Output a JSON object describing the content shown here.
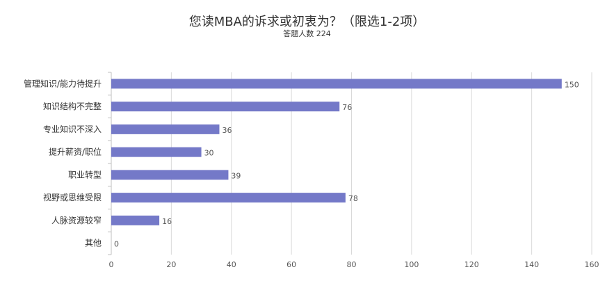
{
  "chart_data": {
    "type": "bar",
    "orientation": "horizontal",
    "title": "您读MBA的诉求或初衷为？（限选1-2项）",
    "subtitle": "答题人数 224",
    "categories": [
      "管理知识/能力待提升",
      "知识结构不完整",
      "专业知识不深入",
      "提升薪资/职位",
      "职业转型",
      "视野或思维受限",
      "人脉资源较窄",
      "其他"
    ],
    "values": [
      150,
      76,
      36,
      30,
      39,
      78,
      16,
      0
    ],
    "xlim": [
      0,
      160
    ],
    "xticks": [
      0,
      20,
      40,
      60,
      80,
      100,
      120,
      140,
      160
    ],
    "grid": true,
    "bar_color": "#7479c8"
  }
}
